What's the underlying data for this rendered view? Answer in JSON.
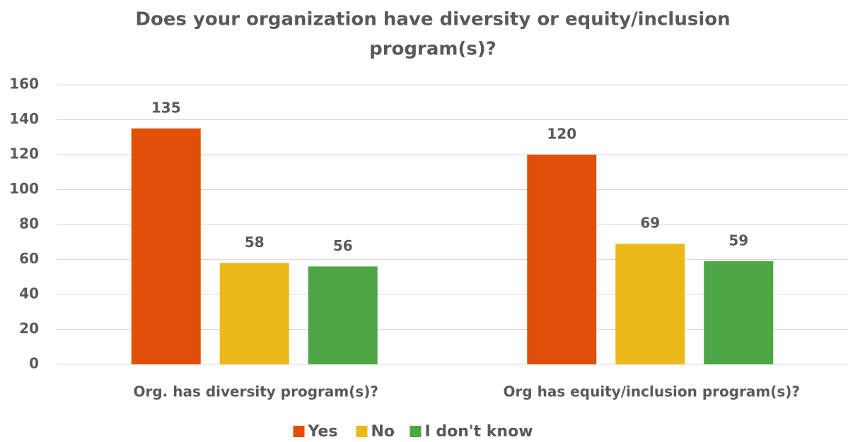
{
  "chart_data": {
    "type": "bar",
    "title": [
      "Does your organization have diversity or equity/inclusion",
      "program(s)?"
    ],
    "categories": [
      "Org. has diversity program(s)?",
      "Org has equity/inclusion program(s)?"
    ],
    "series": [
      {
        "name": "Yes",
        "color": "#e0500b",
        "values": [
          135,
          120
        ]
      },
      {
        "name": "No",
        "color": "#edb91a",
        "values": [
          58,
          69
        ]
      },
      {
        "name": "I don't know",
        "color": "#4ea646",
        "values": [
          56,
          59
        ]
      }
    ],
    "ylim": [
      0,
      160
    ],
    "yticks": [
      0,
      20,
      40,
      60,
      80,
      100,
      120,
      140,
      160
    ],
    "grid": true,
    "legend": "bottom"
  }
}
